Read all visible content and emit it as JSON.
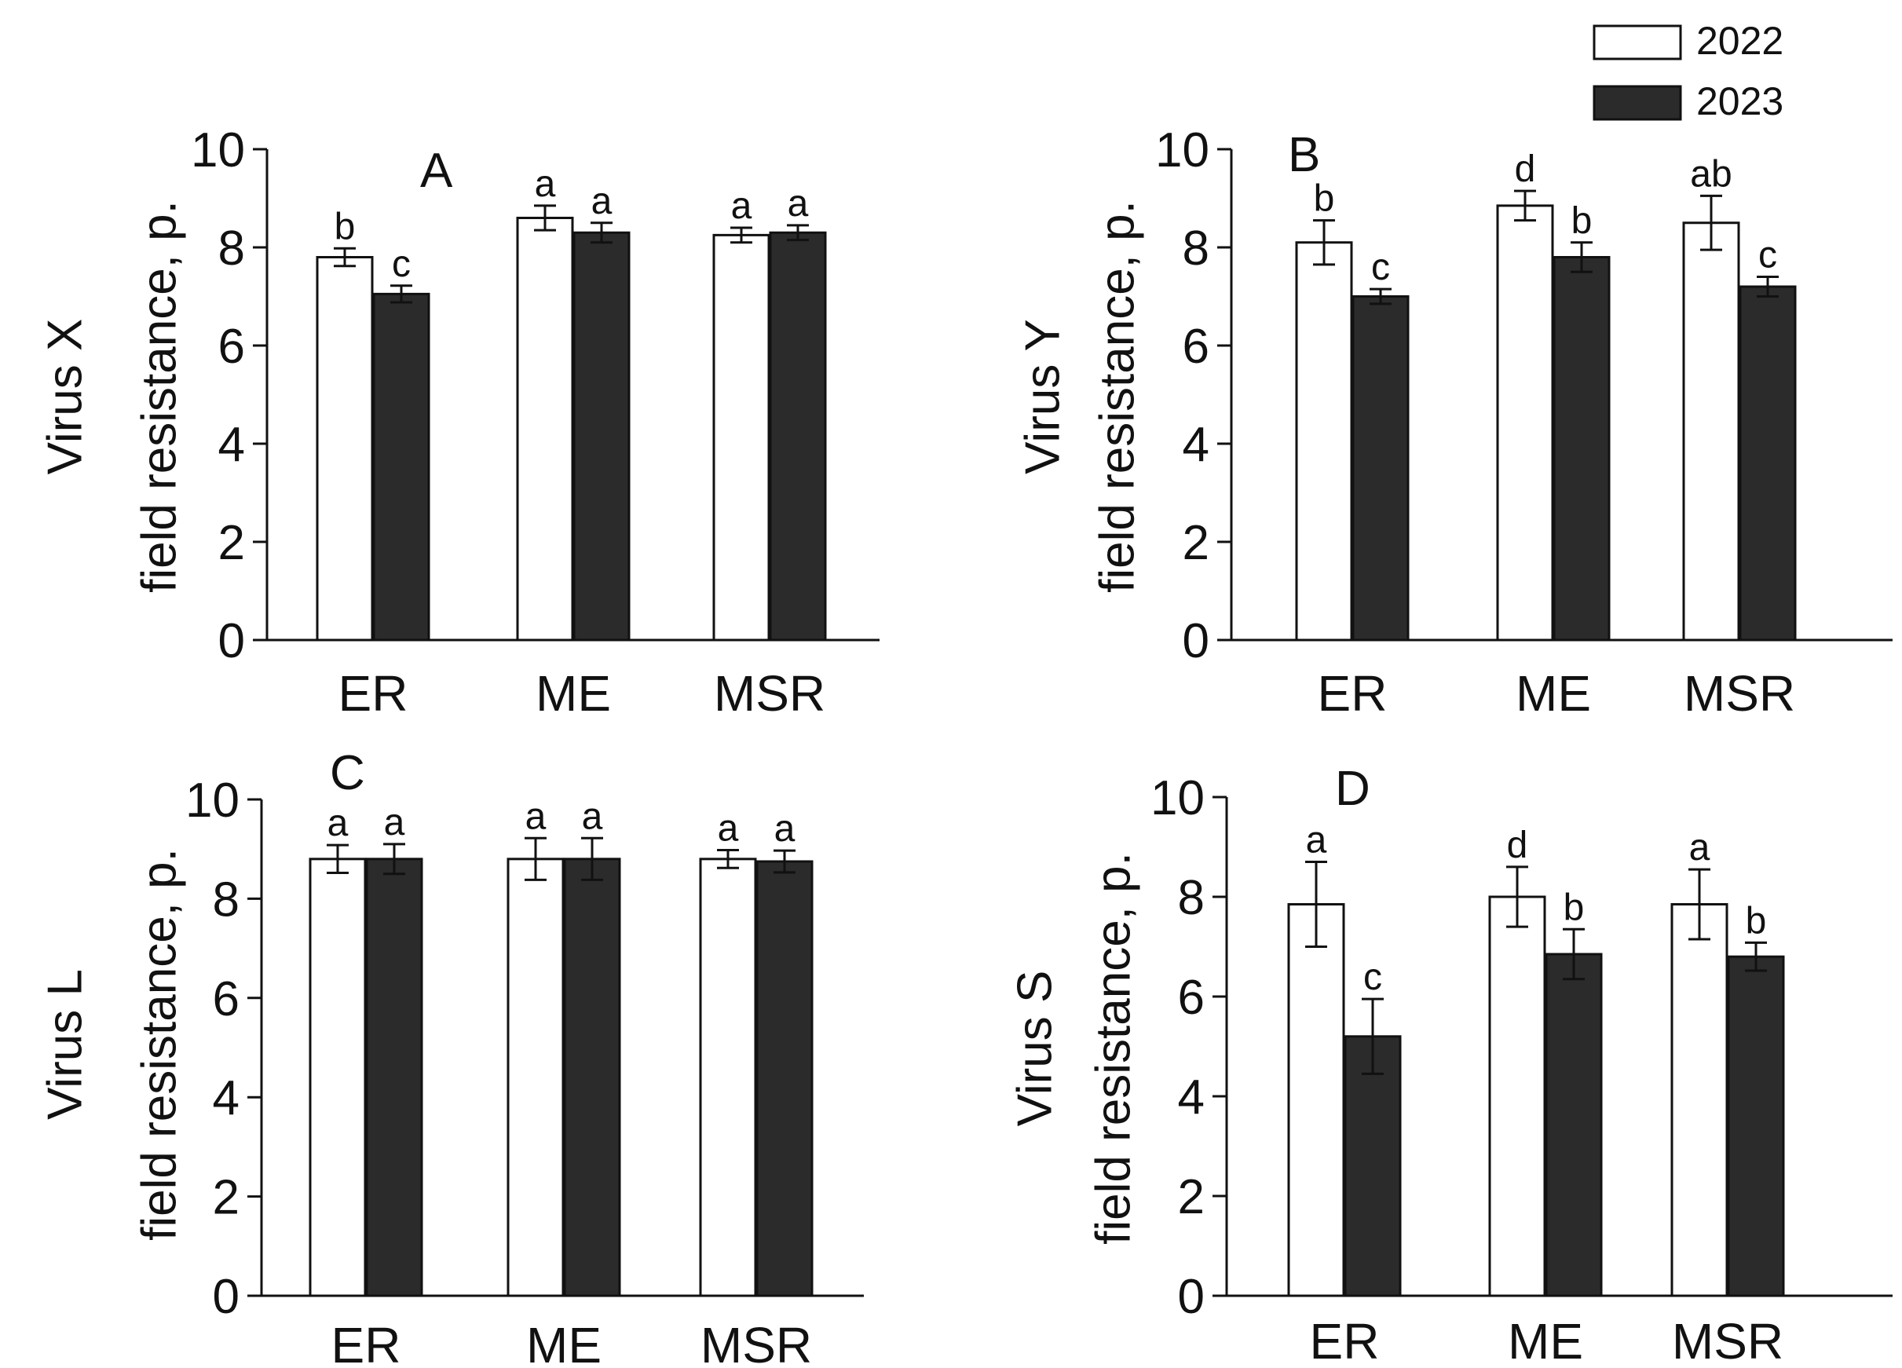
{
  "colors": {
    "y2022": "#ffffff",
    "y2023": "#2b2b2b",
    "stroke": "#111111"
  },
  "legend": {
    "position": "top-right",
    "entries": [
      {
        "label": "2022",
        "series": "y2022"
      },
      {
        "label": "2023",
        "series": "y2023"
      }
    ]
  },
  "chart_data": [
    {
      "type": "bar",
      "panel": "A",
      "ylabel": [
        "Virus X",
        "field resistance, p."
      ],
      "categories": [
        "ER",
        "ME",
        "MSR"
      ],
      "ylim": [
        0,
        10
      ],
      "yticks": [
        "0",
        "2",
        "4",
        "6",
        "8",
        "10"
      ],
      "series": [
        {
          "name": "2022",
          "values": [
            7.8,
            8.6,
            8.25
          ],
          "errors": [
            0.18,
            0.25,
            0.15
          ],
          "letters": [
            "b",
            "a",
            "a"
          ]
        },
        {
          "name": "2023",
          "values": [
            7.05,
            8.3,
            8.3
          ],
          "errors": [
            0.17,
            0.2,
            0.15
          ],
          "letters": [
            "c",
            "a",
            "a"
          ]
        }
      ]
    },
    {
      "type": "bar",
      "panel": "B",
      "ylabel": [
        "Virus Y",
        "field resistance, p."
      ],
      "categories": [
        "ER",
        "ME",
        "MSR"
      ],
      "ylim": [
        0,
        10
      ],
      "yticks": [
        "0",
        "2",
        "4",
        "6",
        "8",
        "10"
      ],
      "series": [
        {
          "name": "2022",
          "values": [
            8.1,
            8.85,
            8.5
          ],
          "errors": [
            0.45,
            0.3,
            0.55
          ],
          "letters": [
            "b",
            "d",
            "ab"
          ]
        },
        {
          "name": "2023",
          "values": [
            7.0,
            7.8,
            7.2
          ],
          "errors": [
            0.15,
            0.3,
            0.2
          ],
          "letters": [
            "c",
            "b",
            "c"
          ]
        }
      ]
    },
    {
      "type": "bar",
      "panel": "C",
      "ylabel": [
        "Virus L",
        "field resistance, p."
      ],
      "categories": [
        "ER",
        "ME",
        "MSR"
      ],
      "ylim": [
        0,
        10
      ],
      "yticks": [
        "0",
        "2",
        "4",
        "6",
        "8",
        "10"
      ],
      "series": [
        {
          "name": "2022",
          "values": [
            8.8,
            8.8,
            8.8
          ],
          "errors": [
            0.28,
            0.42,
            0.18
          ],
          "letters": [
            "a",
            "a",
            "a"
          ]
        },
        {
          "name": "2023",
          "values": [
            8.8,
            8.8,
            8.75
          ],
          "errors": [
            0.3,
            0.42,
            0.22
          ],
          "letters": [
            "a",
            "a",
            "a"
          ]
        }
      ]
    },
    {
      "type": "bar",
      "panel": "D",
      "ylabel": [
        "Virus S",
        "field resistance, p."
      ],
      "categories": [
        "ER",
        "ME",
        "MSR"
      ],
      "ylim": [
        0,
        10
      ],
      "yticks": [
        "0",
        "2",
        "4",
        "6",
        "8",
        "10"
      ],
      "series": [
        {
          "name": "2022",
          "values": [
            7.85,
            8.0,
            7.85
          ],
          "errors": [
            0.85,
            0.6,
            0.7
          ],
          "letters": [
            "a",
            "d",
            "a"
          ]
        },
        {
          "name": "2023",
          "values": [
            5.2,
            6.85,
            6.8
          ],
          "errors": [
            0.75,
            0.5,
            0.28
          ],
          "letters": [
            "c",
            "b",
            "b"
          ]
        }
      ]
    }
  ]
}
